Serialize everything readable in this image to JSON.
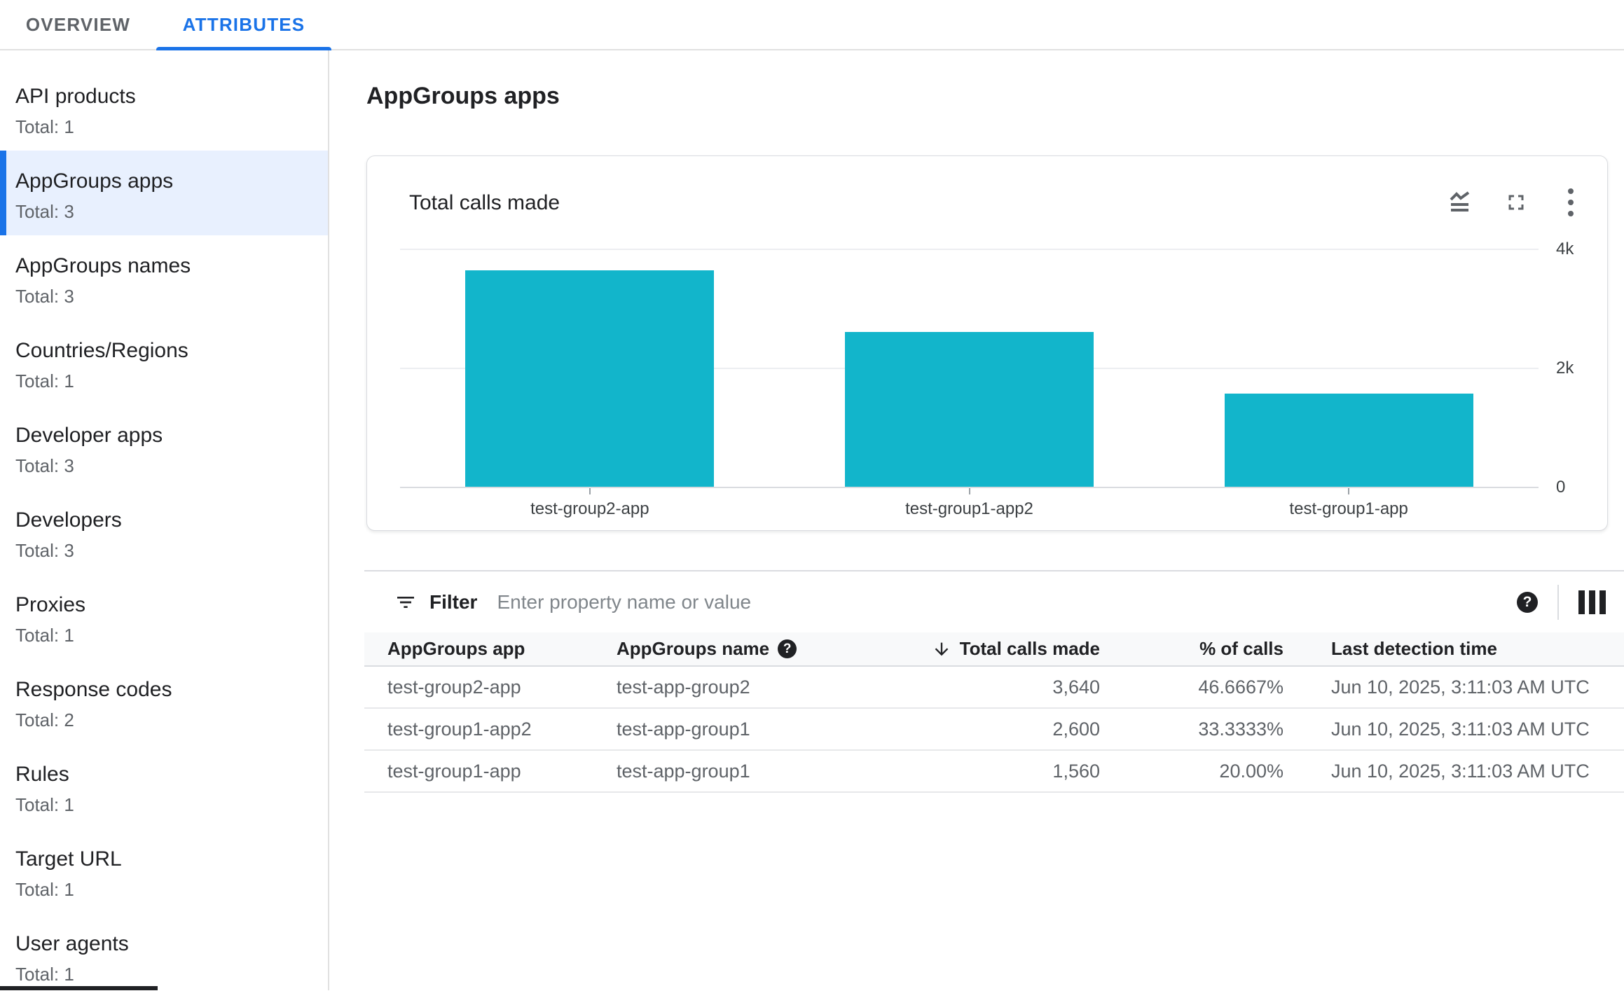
{
  "tabs": [
    {
      "label": "OVERVIEW",
      "active": false
    },
    {
      "label": "ATTRIBUTES",
      "active": true
    }
  ],
  "sidebar": {
    "items": [
      {
        "label": "API products",
        "total": "Total: 1",
        "selected": false
      },
      {
        "label": "AppGroups apps",
        "total": "Total: 3",
        "selected": true
      },
      {
        "label": "AppGroups names",
        "total": "Total: 3",
        "selected": false
      },
      {
        "label": "Countries/Regions",
        "total": "Total: 1",
        "selected": false
      },
      {
        "label": "Developer apps",
        "total": "Total: 3",
        "selected": false
      },
      {
        "label": "Developers",
        "total": "Total: 3",
        "selected": false
      },
      {
        "label": "Proxies",
        "total": "Total: 1",
        "selected": false
      },
      {
        "label": "Response codes",
        "total": "Total: 2",
        "selected": false
      },
      {
        "label": "Rules",
        "total": "Total: 1",
        "selected": false
      },
      {
        "label": "Target URL",
        "total": "Total: 1",
        "selected": false
      },
      {
        "label": "User agents",
        "total": "Total: 1",
        "selected": false
      }
    ]
  },
  "main": {
    "title": "AppGroups apps"
  },
  "chart_card": {
    "title": "Total calls made",
    "icons": [
      "area-chart",
      "fullscreen",
      "more-options"
    ]
  },
  "chart_data": {
    "type": "bar",
    "title": "Total calls made",
    "categories": [
      "test-group2-app",
      "test-group1-app2",
      "test-group1-app"
    ],
    "values": [
      3640,
      2600,
      1560
    ],
    "xlabel": "",
    "ylabel": "",
    "ylim": [
      0,
      4000
    ],
    "yticks": [
      4000,
      2000,
      0
    ],
    "ytick_labels": [
      "4k",
      "2k",
      "0"
    ],
    "bar_color": "#12b5cb",
    "grid": "horizontal",
    "legend": "none"
  },
  "filter": {
    "label": "Filter",
    "placeholder": "Enter property name or value"
  },
  "table": {
    "columns": [
      {
        "label": "AppGroups app",
        "align": "left"
      },
      {
        "label": "AppGroups name",
        "align": "left",
        "help_icon": true
      },
      {
        "label": "Total calls made",
        "align": "right",
        "sort": "desc"
      },
      {
        "label": "% of calls",
        "align": "right"
      },
      {
        "label": "Last detection time",
        "align": "left"
      }
    ],
    "rows": [
      [
        "test-group2-app",
        "test-app-group2",
        "3,640",
        "46.6667%",
        "Jun 10, 2025, 3:11:03 AM UTC"
      ],
      [
        "test-group1-app2",
        "test-app-group1",
        "2,600",
        "33.3333%",
        "Jun 10, 2025, 3:11:03 AM UTC"
      ],
      [
        "test-group1-app",
        "test-app-group1",
        "1,560",
        "20.00%",
        "Jun 10, 2025, 3:11:03 AM UTC"
      ]
    ]
  },
  "colors": {
    "accent": "#1a73e8",
    "selected_bg": "#e8f0fe",
    "bar": "#12b5cb",
    "text_primary": "#202124",
    "text_secondary": "#5f6368",
    "border": "#dadce0"
  }
}
